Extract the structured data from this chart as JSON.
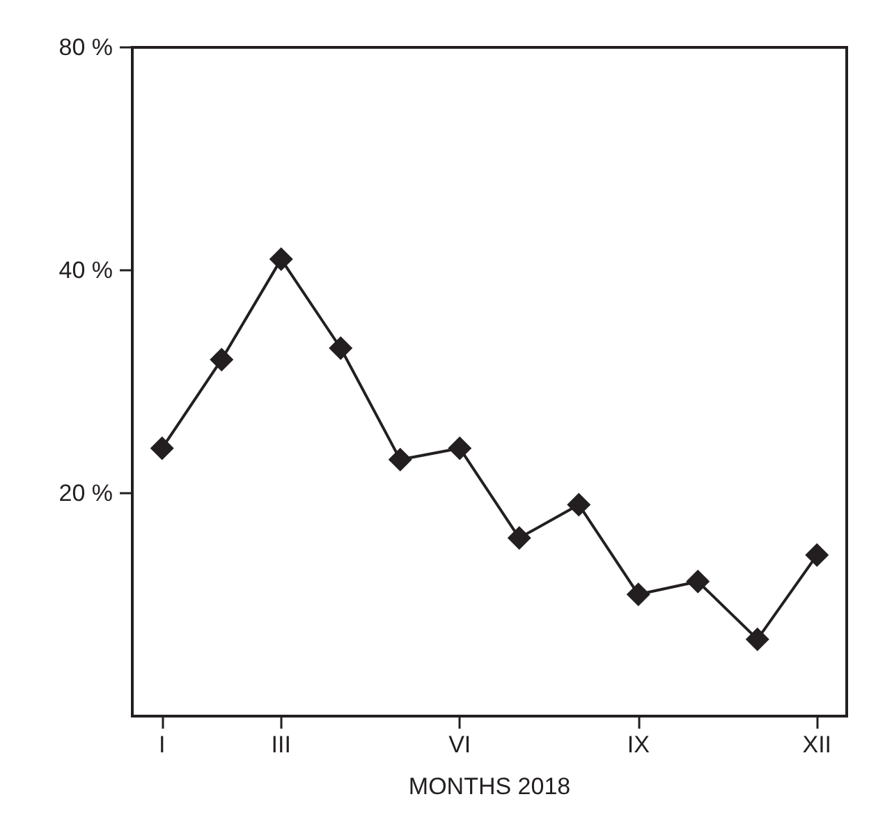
{
  "chart_data": {
    "type": "line",
    "xlabel": "MONTHS 2018",
    "categories": [
      "I",
      null,
      "III",
      null,
      null,
      "VI",
      null,
      null,
      "IX",
      null,
      null,
      "XII"
    ],
    "series": [
      {
        "color": "#231f20",
        "values": [
          23.0,
          30.3,
          41.4,
          31.4,
          22.2,
          23.0,
          17.4,
          19.3,
          14.6,
          15.2,
          12.7,
          16.5
        ]
      }
    ],
    "log": "y",
    "ylim": [
      10,
      80
    ],
    "yticks": [
      {
        "value": 20,
        "label": "20 %"
      },
      {
        "value": 40,
        "label": "40 %"
      },
      {
        "value": 80,
        "label": "80 %"
      }
    ],
    "marker": "diamond",
    "line_style": "solid"
  }
}
